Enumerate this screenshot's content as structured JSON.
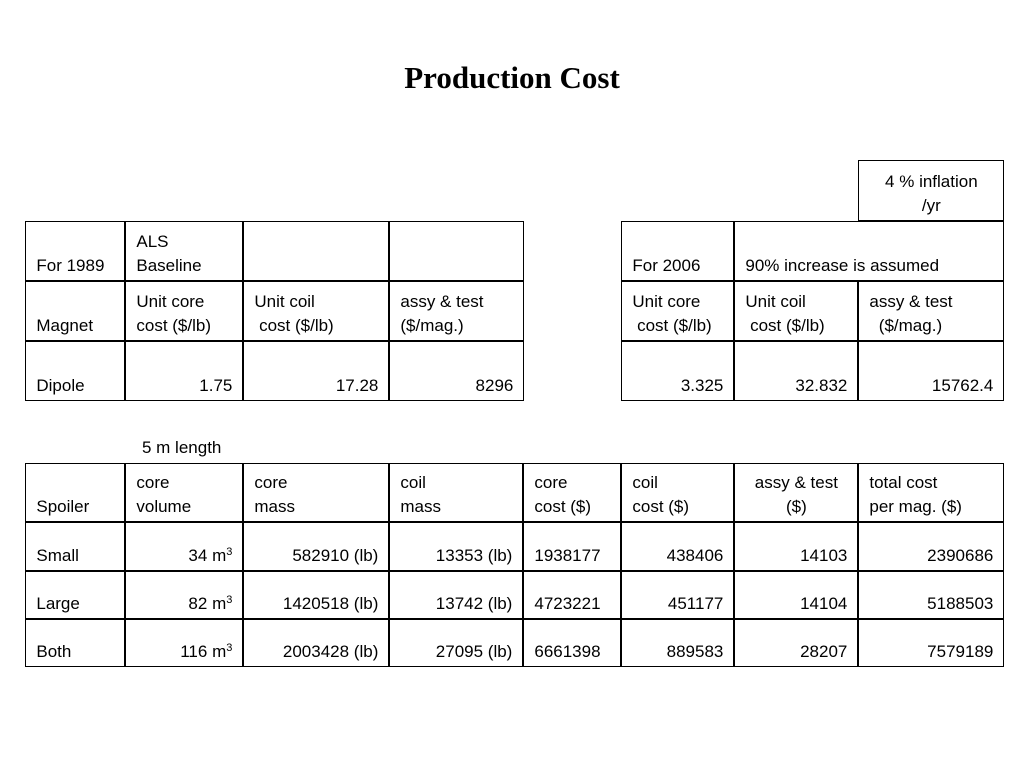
{
  "title": "Production Cost",
  "inflation_note": [
    "4 % inflation",
    "/yr"
  ],
  "table1989": {
    "row1": {
      "label": "For 1989",
      "value": [
        "ALS",
        "Baseline"
      ]
    },
    "headers": {
      "label": "Magnet",
      "core": [
        "Unit core",
        "cost ($/lb)"
      ],
      "coil": [
        "Unit coil",
        " cost ($/lb)"
      ],
      "assy": [
        "assy & test",
        "($/mag.)"
      ]
    },
    "dipole": {
      "label": "Dipole",
      "core": "1.75",
      "coil": "17.28",
      "assy": "8296"
    }
  },
  "table2006": {
    "row1": {
      "label": "For 2006",
      "note": "90% increase is assumed"
    },
    "headers": {
      "core": [
        "Unit core",
        " cost ($/lb)"
      ],
      "coil": [
        "Unit coil",
        " cost ($/lb)"
      ],
      "assy": [
        "assy & test",
        "  ($/mag.)"
      ]
    },
    "dipole": {
      "core": "3.325",
      "coil": "32.832",
      "assy": "15762.4"
    }
  },
  "length_note": "5 m length",
  "spoiler": {
    "headers": {
      "label": "Spoiler",
      "core_volume": [
        "core",
        "volume"
      ],
      "core_mass": [
        "core",
        "mass"
      ],
      "coil_mass": [
        "coil",
        "mass"
      ],
      "core_cost": [
        "core",
        "cost ($)"
      ],
      "coil_cost": [
        "coil",
        "cost ($)"
      ],
      "assy": [
        "assy & test",
        "($)"
      ],
      "total": [
        "total cost",
        "per mag. ($)"
      ]
    },
    "volume_unit": "m",
    "volume_exp": "3",
    "rows": [
      {
        "label": "Small",
        "volume": "34",
        "core_mass": "582910 (lb)",
        "coil_mass": "13353 (lb)",
        "core_cost": "1938177",
        "coil_cost": "438406",
        "assy": "14103",
        "total": "2390686"
      },
      {
        "label": "Large",
        "volume": "82",
        "core_mass": "1420518 (lb)",
        "coil_mass": "13742 (lb)",
        "core_cost": "4723221",
        "coil_cost": "451177",
        "assy": "14104",
        "total": "5188503"
      },
      {
        "label": "Both",
        "volume": "116",
        "core_mass": "2003428 (lb)",
        "coil_mass": "27095 (lb)",
        "core_cost": "6661398",
        "coil_cost": "889583",
        "assy": "28207",
        "total": "7579189"
      }
    ]
  }
}
